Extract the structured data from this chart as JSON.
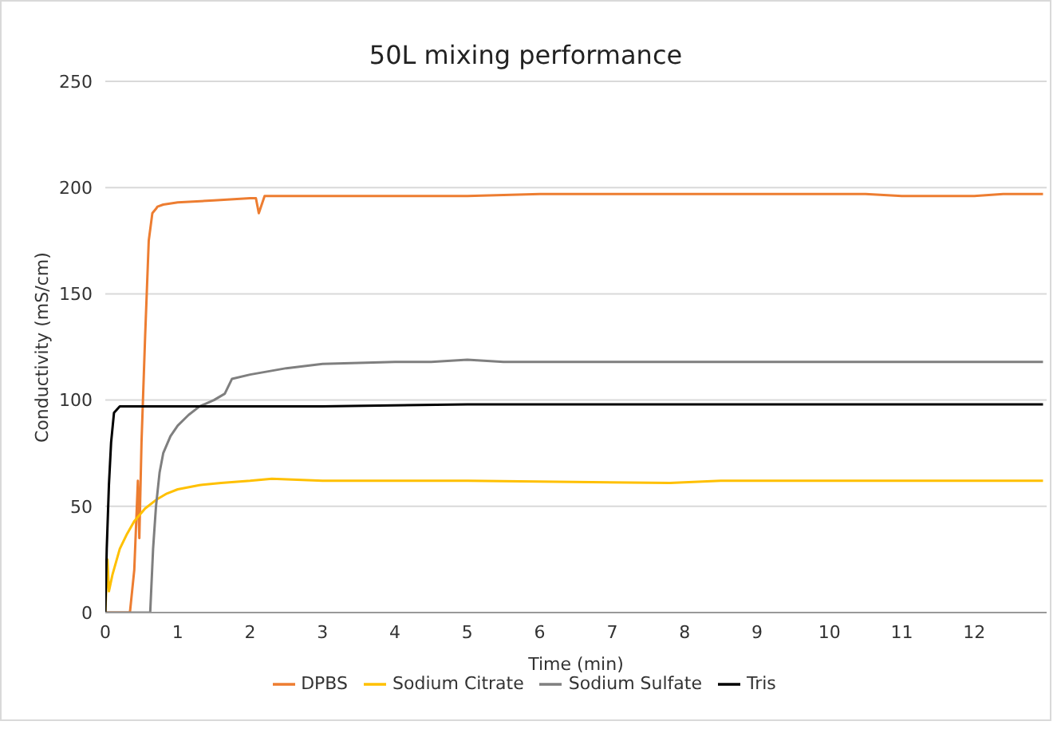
{
  "chart_data": {
    "type": "line",
    "title": "50L mixing performance",
    "xlabel": "Time (min)",
    "ylabel": "Conductivity (mS/cm)",
    "xlim": [
      0,
      13
    ],
    "xticks": [
      0,
      1,
      2,
      3,
      4,
      5,
      6,
      7,
      8,
      9,
      10,
      11,
      12
    ],
    "ylim": [
      0,
      250
    ],
    "yticks": [
      0,
      50,
      100,
      150,
      200,
      250
    ],
    "grid": "y",
    "legend": "bottom",
    "marker": "none",
    "line_style": "solid",
    "series": [
      {
        "name": "DPBS",
        "color": "#ed7d31",
        "x": [
          0,
          0.34,
          0.4,
          0.45,
          0.47,
          0.5,
          0.55,
          0.6,
          0.65,
          0.7,
          0.72,
          0.8,
          1,
          1.5,
          2,
          2.08,
          2.12,
          2.2,
          2.5,
          3,
          4,
          5,
          6,
          7,
          8,
          9,
          10,
          10.5,
          11,
          12,
          12.4,
          12.95
        ],
        "values": [
          0,
          0,
          20,
          62,
          35,
          80,
          130,
          175,
          188,
          190,
          191,
          192,
          193,
          194,
          195,
          195,
          188,
          196,
          196,
          196,
          196,
          196,
          197,
          197,
          197,
          197,
          197,
          197,
          196,
          196,
          197,
          197
        ]
      },
      {
        "name": "Sodium Citrate",
        "color": "#ffc000",
        "x": [
          0,
          0.03,
          0.05,
          0.1,
          0.2,
          0.3,
          0.4,
          0.55,
          0.7,
          0.85,
          1,
          1.3,
          1.6,
          2,
          2.3,
          3,
          5,
          7.8,
          8.5,
          10,
          12.95
        ],
        "values": [
          0,
          25,
          10,
          18,
          30,
          37,
          43,
          49,
          53,
          56,
          58,
          60,
          61,
          62,
          63,
          62,
          62,
          61,
          62,
          62,
          62
        ]
      },
      {
        "name": "Sodium Sulfate",
        "color": "#7f7f7f",
        "x": [
          0,
          0.62,
          0.66,
          0.7,
          0.75,
          0.8,
          0.9,
          1,
          1.15,
          1.3,
          1.5,
          1.65,
          1.75,
          2,
          2.5,
          3,
          4,
          4.5,
          5,
          5.5,
          6.5,
          8,
          10,
          12.95
        ],
        "values": [
          0,
          0,
          30,
          50,
          66,
          75,
          83,
          88,
          93,
          97,
          100,
          103,
          110,
          112,
          115,
          117,
          118,
          118,
          119,
          118,
          118,
          118,
          118,
          118
        ]
      },
      {
        "name": "Tris",
        "color": "#000000",
        "x": [
          0,
          0.02,
          0.05,
          0.08,
          0.12,
          0.2,
          0.5,
          1,
          2,
          3,
          5,
          8,
          12.95
        ],
        "values": [
          0,
          30,
          60,
          80,
          94,
          97,
          97,
          97,
          97,
          97,
          98,
          98,
          98
        ]
      }
    ]
  }
}
